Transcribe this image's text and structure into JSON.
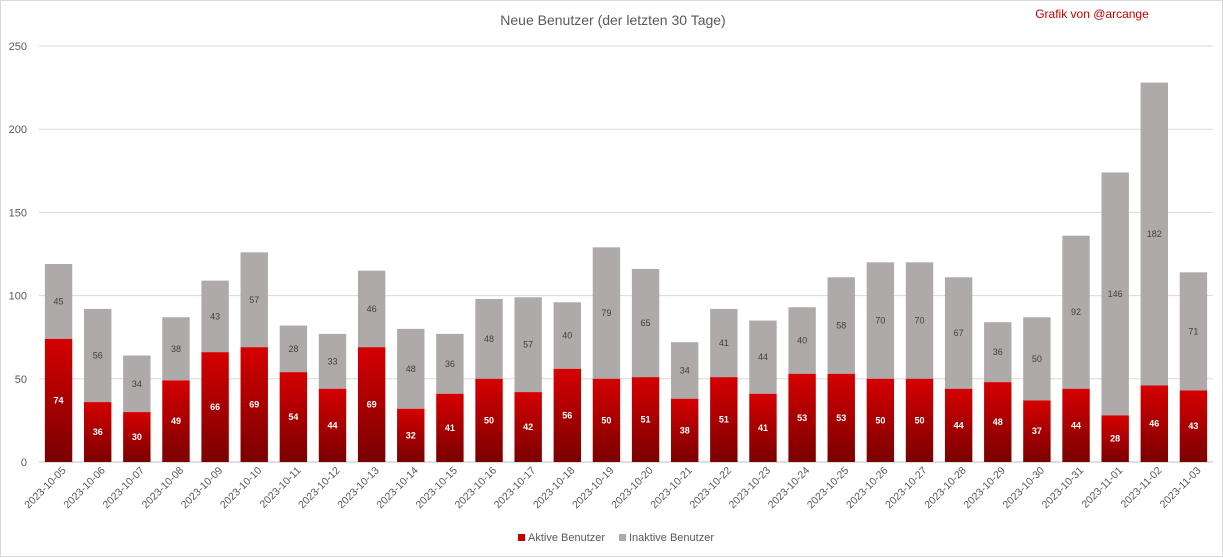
{
  "chart_data": {
    "type": "bar",
    "stacked": true,
    "title": "Neue Benutzer (der letzten 30 Tage)",
    "credit": "Grafik von @arcange",
    "categories": [
      "2023-10-05",
      "2023-10-06",
      "2023-10-07",
      "2023-10-08",
      "2023-10-09",
      "2023-10-10",
      "2023-10-11",
      "2023-10-12",
      "2023-10-13",
      "2023-10-14",
      "2023-10-15",
      "2023-10-16",
      "2023-10-17",
      "2023-10-18",
      "2023-10-19",
      "2023-10-20",
      "2023-10-21",
      "2023-10-22",
      "2023-10-23",
      "2023-10-24",
      "2023-10-25",
      "2023-10-26",
      "2023-10-27",
      "2023-10-28",
      "2023-10-29",
      "2023-10-30",
      "2023-10-31",
      "2023-11-01",
      "2023-11-02",
      "2023-11-03"
    ],
    "series": [
      {
        "name": "Aktive Benutzer",
        "color": "#c00000",
        "values": [
          74,
          36,
          30,
          49,
          66,
          69,
          54,
          44,
          69,
          32,
          41,
          50,
          42,
          56,
          50,
          51,
          38,
          51,
          41,
          53,
          53,
          50,
          50,
          44,
          48,
          37,
          44,
          28,
          46,
          43
        ]
      },
      {
        "name": "Inaktive Benutzer",
        "color": "#aeaaaa",
        "values": [
          45,
          56,
          34,
          38,
          43,
          57,
          28,
          33,
          46,
          48,
          36,
          48,
          57,
          40,
          79,
          65,
          34,
          41,
          44,
          40,
          58,
          70,
          70,
          67,
          36,
          50,
          92,
          146,
          182,
          71
        ]
      }
    ],
    "ylim": [
      0,
      250
    ],
    "yticks": [
      0,
      50,
      100,
      150,
      200,
      250
    ],
    "grid": true,
    "legend": "bottom-center",
    "xlabel": "",
    "ylabel": ""
  }
}
